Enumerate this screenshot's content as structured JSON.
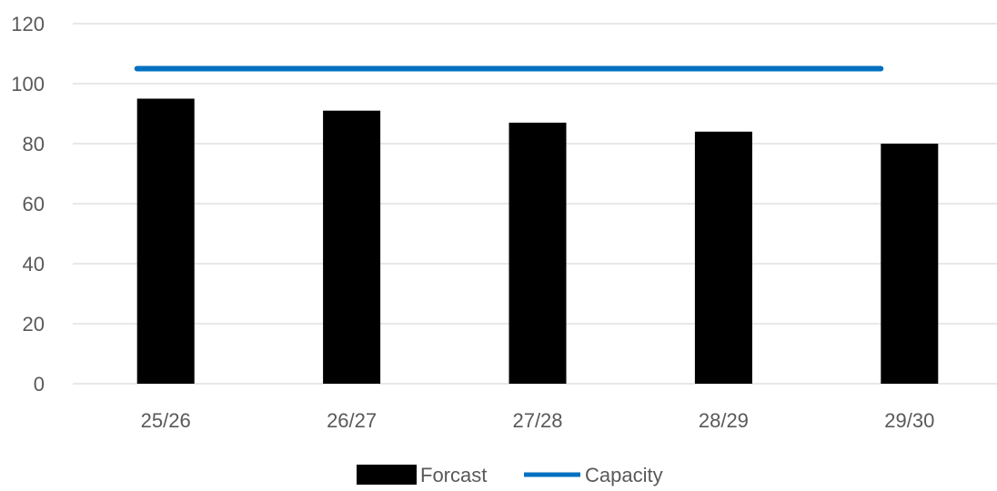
{
  "chart_data": {
    "type": "bar",
    "categories": [
      "25/26",
      "26/27",
      "27/28",
      "28/29",
      "29/30"
    ],
    "series": [
      {
        "name": "Forcast",
        "type": "bar",
        "values": [
          95,
          91,
          87,
          84,
          80
        ],
        "color": "#000000"
      },
      {
        "name": "Capacity",
        "type": "line",
        "values": [
          105,
          105,
          105,
          105,
          105
        ],
        "color": "#0070C0"
      }
    ],
    "title": "",
    "xlabel": "",
    "ylabel": "",
    "ylim": [
      0,
      120
    ],
    "yticks": [
      "0",
      "20",
      "40",
      "60",
      "80",
      "100",
      "120"
    ],
    "grid": true,
    "gridline_color": "#D9D9D9",
    "legend_position": "bottom"
  }
}
